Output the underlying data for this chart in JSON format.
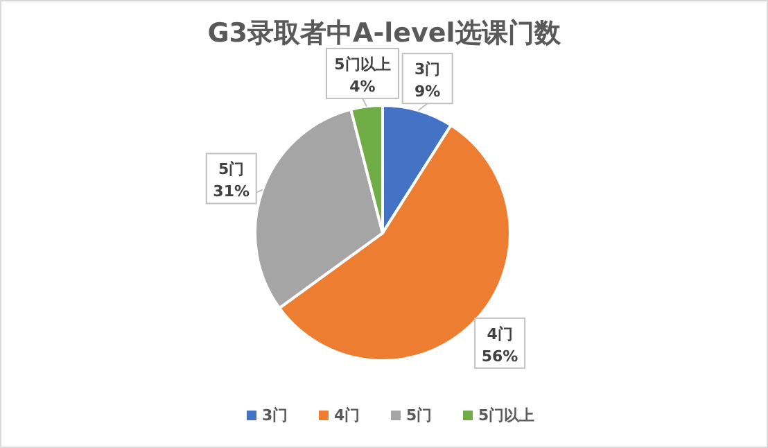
{
  "chart_data": {
    "type": "pie",
    "title": "G3录取者中A-level选课门数",
    "categories": [
      "3门",
      "4门",
      "5门",
      "5门以上"
    ],
    "values": [
      9,
      56,
      31,
      4
    ],
    "value_labels": [
      "9%",
      "56%",
      "31%",
      "4%"
    ],
    "colors": [
      "#4472c4",
      "#ed7d31",
      "#a5a5a5",
      "#70ad47"
    ],
    "legend": "bottom"
  }
}
